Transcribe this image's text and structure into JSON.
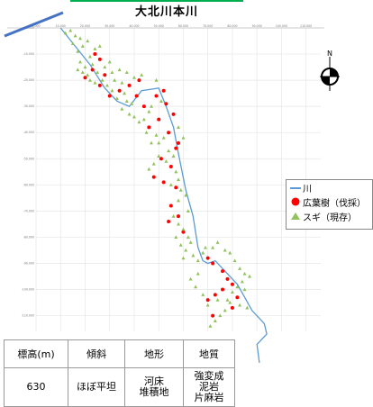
{
  "title": "大北川本川",
  "chart_data": {
    "type": "scatter",
    "x_ticks": [
      "0.000",
      "10.000",
      "20.000",
      "30.000",
      "40.000",
      "50.000",
      "60.000",
      "70.000",
      "80.000",
      "90.000",
      "100.000",
      "110.000"
    ],
    "y_ticks": [
      "0.000",
      "-10.000",
      "-20.000",
      "-30.000",
      "-40.000",
      "-50.000",
      "-60.000",
      "-70.000",
      "-80.000",
      "-90.000",
      "-100.000",
      "-110.000"
    ],
    "xlim": [
      0,
      116
    ],
    "ylim": [
      -116,
      0
    ],
    "grid": true,
    "legend_position": "right",
    "series": [
      {
        "name": "川",
        "kind": "line",
        "color": "#5b9bd5",
        "points": [
          [
            10,
            0
          ],
          [
            22,
            -14
          ],
          [
            28,
            -23
          ],
          [
            33,
            -28
          ],
          [
            38,
            -30
          ],
          [
            43,
            -24
          ],
          [
            50,
            -23
          ],
          [
            53,
            -30
          ],
          [
            56,
            -38
          ],
          [
            58,
            -48
          ],
          [
            61,
            -62
          ],
          [
            64,
            -72
          ],
          [
            66,
            -84
          ],
          [
            68,
            -89
          ],
          [
            70,
            -90
          ],
          [
            73,
            -89
          ],
          [
            77,
            -93
          ],
          [
            82,
            -98
          ],
          [
            85,
            -103
          ],
          [
            88,
            -108
          ],
          [
            93,
            -113
          ],
          [
            94,
            -117
          ],
          [
            90,
            -121
          ],
          [
            91,
            -128
          ]
        ]
      },
      {
        "name": "広葉樹（伐採）",
        "kind": "marker",
        "marker": "circle",
        "color": "#ff0000",
        "points": [
          [
            24,
            -10
          ],
          [
            26,
            -12
          ],
          [
            23,
            -16
          ],
          [
            20,
            -19
          ],
          [
            28,
            -18
          ],
          [
            26,
            -22
          ],
          [
            30,
            -26
          ],
          [
            34,
            -24
          ],
          [
            38,
            -22
          ],
          [
            42,
            -20
          ],
          [
            41,
            -26
          ],
          [
            44,
            -30
          ],
          [
            49,
            -26
          ],
          [
            52,
            -24
          ],
          [
            53,
            -29
          ],
          [
            56,
            -33
          ],
          [
            50,
            -35
          ],
          [
            46,
            -38
          ],
          [
            54,
            -40
          ],
          [
            58,
            -44
          ],
          [
            51,
            -50
          ],
          [
            55,
            -53
          ],
          [
            57,
            -46
          ],
          [
            48,
            -57
          ],
          [
            52,
            -59
          ],
          [
            57,
            -61
          ],
          [
            55,
            -68
          ],
          [
            58,
            -72
          ],
          [
            54,
            -74
          ],
          [
            60,
            -78
          ],
          [
            70,
            -88
          ],
          [
            72,
            -90
          ],
          [
            76,
            -93
          ],
          [
            78,
            -96
          ],
          [
            80,
            -98
          ],
          [
            82,
            -103
          ],
          [
            80,
            -107
          ],
          [
            76,
            -100
          ],
          [
            73,
            -102
          ],
          [
            70,
            -104
          ],
          [
            72,
            -110
          ]
        ]
      },
      {
        "name": "スギ（現存）",
        "kind": "marker",
        "marker": "triangle",
        "color": "#92c25c",
        "points": [
          [
            12,
            -2
          ],
          [
            14,
            -1
          ],
          [
            16,
            -3
          ],
          [
            18,
            -4
          ],
          [
            15,
            -6
          ],
          [
            19,
            -7
          ],
          [
            17,
            -9
          ],
          [
            21,
            -5
          ],
          [
            22,
            -11
          ],
          [
            18,
            -13
          ],
          [
            20,
            -15
          ],
          [
            17,
            -16
          ],
          [
            19,
            -17
          ],
          [
            21,
            -18
          ],
          [
            23,
            -14
          ],
          [
            22,
            -20
          ],
          [
            24,
            -21
          ],
          [
            27,
            -20
          ],
          [
            28,
            -15
          ],
          [
            30,
            -13
          ],
          [
            31,
            -17
          ],
          [
            29,
            -22
          ],
          [
            32,
            -20
          ],
          [
            35,
            -21
          ],
          [
            36,
            -25
          ],
          [
            33,
            -27
          ],
          [
            37,
            -28
          ],
          [
            39,
            -29
          ],
          [
            35,
            -31
          ],
          [
            38,
            -33
          ],
          [
            40,
            -34
          ],
          [
            42,
            -36
          ],
          [
            44,
            -35
          ],
          [
            46,
            -32
          ],
          [
            47,
            -30
          ],
          [
            45,
            -40
          ],
          [
            49,
            -41
          ],
          [
            47,
            -44
          ],
          [
            50,
            -44
          ],
          [
            52,
            -42
          ],
          [
            54,
            -47
          ],
          [
            56,
            -49
          ],
          [
            53,
            -51
          ],
          [
            57,
            -55
          ],
          [
            58,
            -58
          ],
          [
            55,
            -60
          ],
          [
            59,
            -62
          ],
          [
            61,
            -64
          ],
          [
            58,
            -66
          ],
          [
            62,
            -70
          ],
          [
            56,
            -72
          ],
          [
            58,
            -75
          ],
          [
            60,
            -77
          ],
          [
            57,
            -80
          ],
          [
            59,
            -83
          ],
          [
            61,
            -85
          ],
          [
            63,
            -82
          ],
          [
            64,
            -87
          ],
          [
            66,
            -89
          ],
          [
            68,
            -86
          ],
          [
            69,
            -84
          ],
          [
            72,
            -84
          ],
          [
            74,
            -82
          ],
          [
            77,
            -85
          ],
          [
            79,
            -86
          ],
          [
            81,
            -89
          ],
          [
            83,
            -92
          ],
          [
            85,
            -94
          ],
          [
            84,
            -97
          ],
          [
            82,
            -99
          ],
          [
            80,
            -101
          ],
          [
            78,
            -104
          ],
          [
            77,
            -108
          ],
          [
            75,
            -110
          ],
          [
            73,
            -112
          ],
          [
            71,
            -114
          ],
          [
            74,
            -104
          ],
          [
            79,
            -105
          ],
          [
            83,
            -106
          ],
          [
            86,
            -107
          ],
          [
            43,
            -18
          ],
          [
            40,
            -19
          ],
          [
            37,
            -17
          ],
          [
            34,
            -16
          ],
          [
            49,
            -20
          ],
          [
            51,
            -28
          ],
          [
            58,
            -38
          ],
          [
            60,
            -42
          ],
          [
            50,
            -49
          ],
          [
            48,
            -52
          ],
          [
            46,
            -54
          ],
          [
            62,
            -80
          ],
          [
            60,
            -88
          ],
          [
            66,
            -94
          ],
          [
            63,
            -96
          ],
          [
            65,
            -99
          ],
          [
            68,
            -102
          ],
          [
            70,
            -106
          ],
          [
            85,
            -100
          ],
          [
            87,
            -95
          ],
          [
            26,
            -7
          ],
          [
            24,
            -8
          ],
          [
            25,
            -17
          ],
          [
            31,
            -24
          ]
        ]
      }
    ]
  },
  "table": {
    "headers": [
      "標高(m)",
      "傾斜",
      "地形",
      "地質"
    ],
    "row": {
      "elevation": "630",
      "slope": "ほぼ平坦",
      "terrain_1": "河床",
      "terrain_2": "堆積地",
      "geology_1": "強変成",
      "geology_2": "泥岩",
      "geology_3": "片麻岩"
    }
  },
  "compass_label": "N"
}
